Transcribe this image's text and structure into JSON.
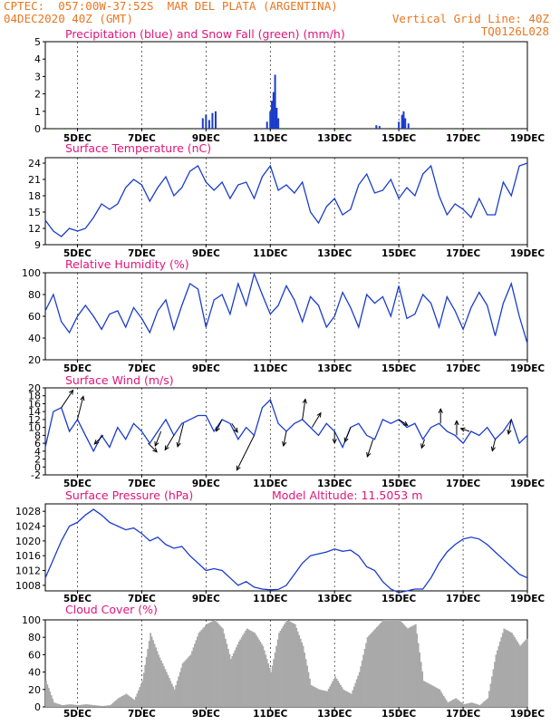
{
  "header": {
    "line1_left": "CPTEC:  057:00W-37:52S  MAR DEL PLATA (ARGENTINA)",
    "line2_left": "04DEC2020 40Z (GMT)",
    "line2_right": "Vertical Grid Line: 40Z",
    "line3_right": "TQ0126L028",
    "color": "#e87722"
  },
  "colors": {
    "title": "#e0157a",
    "axis_text": "#000000",
    "line": "#1a3ccc",
    "precip": "#1a3ccc",
    "snow": "#22aa22",
    "cloud": "#a9a9a9",
    "arrow": "#000000"
  },
  "x_axis": {
    "tick_labels": [
      "5DEC",
      "7DEC",
      "9DEC",
      "11DEC",
      "13DEC",
      "15DEC",
      "17DEC",
      "19DEC"
    ],
    "tick_days": [
      5,
      7,
      9,
      11,
      13,
      15,
      17,
      19
    ],
    "range_days": [
      4.0,
      19.0
    ]
  },
  "chart_data": [
    {
      "type": "bar",
      "title": "Precipitation (blue) and Snow Fall (green) (mm/h)",
      "ylim": [
        0,
        5
      ],
      "yticks": [
        0,
        1,
        2,
        3,
        4,
        5
      ],
      "series": [
        {
          "name": "Precipitation",
          "x": [
            8.9,
            9.0,
            9.1,
            9.2,
            9.3,
            10.9,
            11.0,
            11.05,
            11.1,
            11.15,
            11.2,
            11.25,
            14.3,
            14.4,
            15.0,
            15.1,
            15.15,
            15.2,
            15.3
          ],
          "values": [
            0.6,
            0.8,
            0.5,
            0.9,
            1.0,
            0.4,
            1.0,
            1.6,
            2.1,
            3.1,
            1.2,
            0.6,
            0.2,
            0.15,
            0.4,
            0.8,
            1.0,
            0.6,
            0.3
          ]
        },
        {
          "name": "Snow Fall",
          "x": [
            4.1,
            4.6,
            5.5,
            6.3,
            7.4,
            7.9,
            8.5,
            11.5,
            13.1,
            15.9,
            16.8,
            17.6,
            18.4
          ],
          "values": [
            0.05,
            0.05,
            0.05,
            0.05,
            0.05,
            0.05,
            0.05,
            0.05,
            0.05,
            0.05,
            0.05,
            0.05,
            0.05
          ]
        }
      ]
    },
    {
      "type": "line",
      "title": "Surface Temperature (nC)",
      "ylim": [
        9,
        25
      ],
      "yticks": [
        9,
        12,
        15,
        18,
        21,
        24
      ],
      "x": [
        4.0,
        4.25,
        4.5,
        4.75,
        5.0,
        5.25,
        5.5,
        5.75,
        6.0,
        6.25,
        6.5,
        6.75,
        7.0,
        7.25,
        7.5,
        7.75,
        8.0,
        8.25,
        8.5,
        8.75,
        9.0,
        9.25,
        9.5,
        9.75,
        10.0,
        10.25,
        10.5,
        10.75,
        11.0,
        11.25,
        11.5,
        11.75,
        12.0,
        12.25,
        12.5,
        12.75,
        13.0,
        13.25,
        13.5,
        13.75,
        14.0,
        14.25,
        14.5,
        14.75,
        15.0,
        15.25,
        15.5,
        15.75,
        16.0,
        16.25,
        16.5,
        16.75,
        17.0,
        17.25,
        17.5,
        17.75,
        18.0,
        18.25,
        18.5,
        18.75,
        19.0
      ],
      "values": [
        13.5,
        11.5,
        10.5,
        12.0,
        11.5,
        12.0,
        14.0,
        16.5,
        15.5,
        16.5,
        19.5,
        21.0,
        20.0,
        17.0,
        19.5,
        21.5,
        18.0,
        19.5,
        22.5,
        23.5,
        20.5,
        19.0,
        20.5,
        17.5,
        20.0,
        20.5,
        17.5,
        21.5,
        23.5,
        19.0,
        20.0,
        18.5,
        20.5,
        15.0,
        13.0,
        16.0,
        17.5,
        14.5,
        15.5,
        20.0,
        22.0,
        18.5,
        19.0,
        21.0,
        17.5,
        19.5,
        18.0,
        22.0,
        23.5,
        18.0,
        14.5,
        16.5,
        15.5,
        14.0,
        17.5,
        14.5,
        14.5,
        20.5,
        18.0,
        23.5,
        24.0
      ]
    },
    {
      "type": "line",
      "title": "Relative Humidity (%)",
      "ylim": [
        20,
        100
      ],
      "yticks": [
        20,
        40,
        60,
        80,
        100
      ],
      "x": [
        4.0,
        4.25,
        4.5,
        4.75,
        5.0,
        5.25,
        5.5,
        5.75,
        6.0,
        6.25,
        6.5,
        6.75,
        7.0,
        7.25,
        7.5,
        7.75,
        8.0,
        8.25,
        8.5,
        8.75,
        9.0,
        9.25,
        9.5,
        9.75,
        10.0,
        10.25,
        10.5,
        10.75,
        11.0,
        11.25,
        11.5,
        11.75,
        12.0,
        12.25,
        12.5,
        12.75,
        13.0,
        13.25,
        13.5,
        13.75,
        14.0,
        14.25,
        14.5,
        14.75,
        15.0,
        15.25,
        15.5,
        15.75,
        16.0,
        16.25,
        16.5,
        16.75,
        17.0,
        17.25,
        17.5,
        17.75,
        18.0,
        18.25,
        18.5,
        18.75,
        19.0
      ],
      "values": [
        65,
        80,
        55,
        45,
        60,
        70,
        60,
        48,
        62,
        65,
        50,
        68,
        58,
        45,
        65,
        75,
        48,
        70,
        90,
        85,
        50,
        75,
        80,
        62,
        90,
        70,
        99,
        80,
        62,
        70,
        88,
        75,
        55,
        78,
        70,
        50,
        60,
        82,
        68,
        50,
        80,
        72,
        78,
        60,
        88,
        58,
        62,
        80,
        72,
        50,
        78,
        65,
        48,
        68,
        82,
        70,
        42,
        72,
        90,
        60,
        35
      ]
    },
    {
      "type": "line",
      "title": "Surface Wind (m/s)",
      "ylim": [
        -2,
        20
      ],
      "yticks": [
        -2,
        0,
        2,
        4,
        6,
        8,
        10,
        12,
        14,
        16,
        18,
        20
      ],
      "x": [
        4.0,
        4.25,
        4.5,
        4.75,
        5.0,
        5.25,
        5.5,
        5.75,
        6.0,
        6.25,
        6.5,
        6.75,
        7.0,
        7.25,
        7.5,
        7.75,
        8.0,
        8.25,
        8.5,
        8.75,
        9.0,
        9.25,
        9.5,
        9.75,
        10.0,
        10.25,
        10.5,
        10.75,
        11.0,
        11.25,
        11.5,
        11.75,
        12.0,
        12.25,
        12.5,
        12.75,
        13.0,
        13.25,
        13.5,
        13.75,
        14.0,
        14.25,
        14.5,
        14.75,
        15.0,
        15.25,
        15.5,
        15.75,
        16.0,
        16.25,
        16.5,
        16.75,
        17.0,
        17.25,
        17.5,
        17.75,
        18.0,
        18.25,
        18.5,
        18.75,
        19.0
      ],
      "values": [
        5,
        14,
        15,
        9,
        12,
        8,
        4,
        8,
        5,
        10,
        7,
        11,
        9,
        6,
        9,
        12,
        8,
        11,
        12,
        13,
        13,
        9,
        12,
        11,
        7,
        10,
        8,
        15,
        17,
        11,
        9,
        11,
        12,
        10,
        8,
        11,
        9,
        5,
        10,
        11,
        8,
        7,
        12,
        11,
        12,
        10,
        11,
        7,
        10,
        11,
        9,
        8,
        6,
        9,
        8,
        10,
        7,
        9,
        12,
        6,
        8
      ],
      "arrow_times": [
        4.5,
        5.0,
        5.8,
        7.2,
        7.6,
        8.0,
        8.3,
        9.5,
        9.8,
        10.5,
        11.5,
        12.0,
        12.3,
        13.0,
        13.5,
        14.2,
        15.0,
        15.8,
        16.3,
        16.8,
        17.2,
        18.0,
        18.5
      ],
      "arrow_u": [
        4,
        2,
        -3,
        3,
        -2,
        -3,
        -2,
        -2,
        2,
        -6,
        -1,
        1,
        3,
        0,
        -2,
        -2,
        3,
        -1,
        0,
        0,
        -3,
        -1,
        -1
      ],
      "arrow_v": [
        6,
        8,
        -3,
        -3,
        -5,
        -5,
        -8,
        -4,
        -3,
        -12,
        -5,
        7,
        5,
        -4,
        -5,
        -6,
        -2,
        -3,
        5,
        5,
        1,
        -4,
        -5
      ]
    },
    {
      "type": "line",
      "title": "Surface Pressure (hPa)",
      "annotation": "Model Altitude: 11.5053 m",
      "ylim": [
        1006.5,
        1030
      ],
      "yticks": [
        1008,
        1012,
        1016,
        1020,
        1024,
        1028
      ],
      "x": [
        4.0,
        4.25,
        4.5,
        4.75,
        5.0,
        5.25,
        5.5,
        5.75,
        6.0,
        6.25,
        6.5,
        6.75,
        7.0,
        7.25,
        7.5,
        7.75,
        8.0,
        8.25,
        8.5,
        8.75,
        9.0,
        9.25,
        9.5,
        9.75,
        10.0,
        10.25,
        10.5,
        10.75,
        11.0,
        11.25,
        11.5,
        11.75,
        12.0,
        12.25,
        12.5,
        12.75,
        13.0,
        13.25,
        13.5,
        13.75,
        14.0,
        14.25,
        14.5,
        14.75,
        15.0,
        15.25,
        15.5,
        15.75,
        16.0,
        16.25,
        16.5,
        16.75,
        17.0,
        17.25,
        17.5,
        17.75,
        18.0,
        18.25,
        18.5,
        18.75,
        19.0
      ],
      "values": [
        1010,
        1015,
        1020,
        1024,
        1025,
        1027,
        1028.5,
        1027,
        1025,
        1024,
        1023,
        1023.5,
        1022,
        1020,
        1021,
        1019,
        1018,
        1018.5,
        1016,
        1014,
        1012,
        1012.5,
        1012,
        1010,
        1008,
        1009,
        1007.5,
        1007,
        1006.8,
        1006.9,
        1008,
        1011,
        1014,
        1016,
        1016.5,
        1017,
        1017.8,
        1017.2,
        1017.5,
        1016,
        1013,
        1012,
        1009,
        1007,
        1006,
        1006.5,
        1007,
        1007,
        1010,
        1014,
        1017,
        1019,
        1020.5,
        1021,
        1020.5,
        1019,
        1017,
        1015,
        1013,
        1011,
        1010
      ]
    },
    {
      "type": "area",
      "title": "Cloud Cover (%)",
      "ylim": [
        0,
        100
      ],
      "yticks": [
        0,
        20,
        40,
        60,
        80,
        100
      ],
      "x": [
        4.0,
        4.25,
        4.5,
        4.75,
        5.0,
        5.25,
        5.5,
        5.75,
        6.0,
        6.25,
        6.5,
        6.75,
        7.0,
        7.25,
        7.5,
        7.75,
        8.0,
        8.25,
        8.5,
        8.75,
        9.0,
        9.25,
        9.5,
        9.75,
        10.0,
        10.25,
        10.5,
        10.75,
        11.0,
        11.25,
        11.5,
        11.75,
        12.0,
        12.25,
        12.5,
        12.75,
        13.0,
        13.25,
        13.5,
        13.75,
        14.0,
        14.25,
        14.5,
        14.75,
        15.0,
        15.25,
        15.5,
        15.75,
        16.0,
        16.25,
        16.5,
        16.75,
        17.0,
        17.25,
        17.5,
        17.75,
        18.0,
        18.25,
        18.5,
        18.75,
        19.0
      ],
      "values": [
        30,
        5,
        2,
        3,
        2,
        3,
        2,
        1,
        2,
        10,
        15,
        8,
        30,
        85,
        60,
        40,
        20,
        50,
        60,
        85,
        95,
        100,
        90,
        55,
        75,
        90,
        85,
        70,
        40,
        85,
        100,
        95,
        70,
        25,
        20,
        18,
        35,
        20,
        15,
        40,
        80,
        90,
        100,
        100,
        100,
        90,
        95,
        30,
        25,
        20,
        5,
        10,
        3,
        5,
        2,
        10,
        60,
        90,
        85,
        70,
        80
      ]
    }
  ]
}
